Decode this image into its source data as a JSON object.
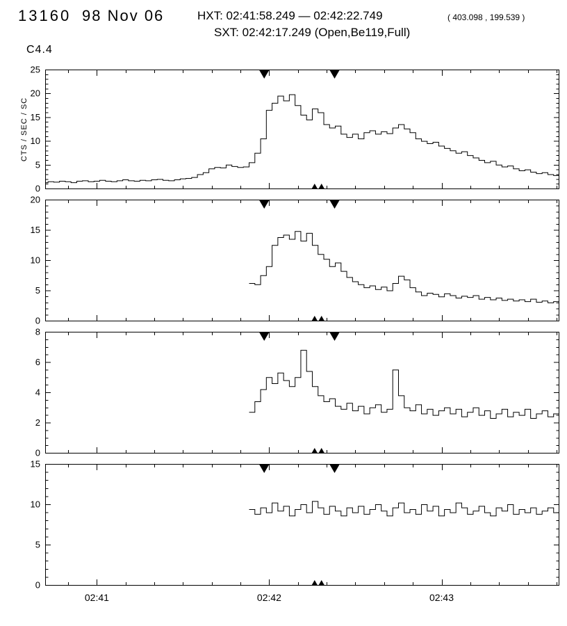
{
  "header": {
    "event_number": "13160",
    "date": "98 Nov 06",
    "hxt_text": "HXT: 02:41:58.249 — 02:42:22.749",
    "hxt_coords": "( 403.098 , 199.539 )",
    "sxt_text": "SXT: 02:42:17.249 (Open,Be119,Full)",
    "flare_class": "C4.4"
  },
  "axis": {
    "x_range": [
      42,
      221
    ],
    "x_minor": 10,
    "x_ticks": [
      {
        "t": 60,
        "label": "02:41"
      },
      {
        "t": 120,
        "label": "02:42"
      },
      {
        "t": 180,
        "label": "02:43"
      }
    ]
  },
  "markers": {
    "hxt_interval": [
      118.25,
      142.75
    ],
    "sxt_time": [
      135.8,
      138.2
    ]
  },
  "chart_data": [
    {
      "type": "line",
      "name": "hxt-channel-1-lightcurve",
      "ylabel": "CTS / SEC / SC",
      "ylim": [
        0,
        25
      ],
      "ytick": 5,
      "yminor": 5,
      "t0": 42,
      "dt": 2,
      "values": [
        1.3,
        1.5,
        1.4,
        1.6,
        1.5,
        1.3,
        1.6,
        1.7,
        1.5,
        1.6,
        1.8,
        1.6,
        1.5,
        1.7,
        1.9,
        1.7,
        1.6,
        1.8,
        1.7,
        1.9,
        2.0,
        1.8,
        1.7,
        1.9,
        2.1,
        2.2,
        2.4,
        3.0,
        3.4,
        4.2,
        4.5,
        4.4,
        5.0,
        4.7,
        4.5,
        4.6,
        5.5,
        7.5,
        10.5,
        16.5,
        18.0,
        19.5,
        18.5,
        19.8,
        17.5,
        15.5,
        14.5,
        16.8,
        16.0,
        13.5,
        12.8,
        13.2,
        11.5,
        10.8,
        11.5,
        10.5,
        11.8,
        12.2,
        11.5,
        12.0,
        11.6,
        12.8,
        13.5,
        12.6,
        11.8,
        10.5,
        10.0,
        9.5,
        9.8,
        9.0,
        8.5,
        8.0,
        7.5,
        7.8,
        7.0,
        6.5,
        6.0,
        5.5,
        5.8,
        5.0,
        4.6,
        4.8,
        4.2,
        3.8,
        4.0,
        3.5,
        3.2,
        3.4,
        3.0,
        2.8
      ]
    },
    {
      "type": "line",
      "name": "hxt-channel-2-lightcurve",
      "ylabel": "",
      "ylim": [
        0,
        20
      ],
      "ytick": 5,
      "yminor": 5,
      "t0": 114,
      "dt": 2,
      "values": [
        6.2,
        6.0,
        7.5,
        9.0,
        12.5,
        13.8,
        14.2,
        13.5,
        14.8,
        13.2,
        14.5,
        12.5,
        11.0,
        10.2,
        9.0,
        9.6,
        8.2,
        7.2,
        6.5,
        6.0,
        5.5,
        5.8,
        5.2,
        5.6,
        5.0,
        6.2,
        7.4,
        6.8,
        5.5,
        4.8,
        4.2,
        4.6,
        4.4,
        4.0,
        4.5,
        4.2,
        3.8,
        4.1,
        3.9,
        4.2,
        3.6,
        3.9,
        3.5,
        3.8,
        3.4,
        3.6,
        3.3,
        3.5,
        3.2,
        3.6,
        3.1,
        3.3,
        3.0,
        3.2
      ]
    },
    {
      "type": "line",
      "name": "hxt-channel-3-lightcurve",
      "ylabel": "",
      "ylim": [
        0,
        8
      ],
      "ytick": 2,
      "yminor": 4,
      "t0": 114,
      "dt": 2,
      "values": [
        2.7,
        3.4,
        4.2,
        5.0,
        4.6,
        5.3,
        4.8,
        4.4,
        5.0,
        6.8,
        5.4,
        4.4,
        3.8,
        3.4,
        3.6,
        3.1,
        2.9,
        3.3,
        2.8,
        3.1,
        2.6,
        3.0,
        3.2,
        2.7,
        2.9,
        5.5,
        3.8,
        3.0,
        2.8,
        3.2,
        2.6,
        2.9,
        2.5,
        2.8,
        3.0,
        2.6,
        2.9,
        2.4,
        2.7,
        3.0,
        2.5,
        2.8,
        2.3,
        2.6,
        2.9,
        2.4,
        2.7,
        2.5,
        2.9,
        2.3,
        2.6,
        2.8,
        2.4,
        2.6
      ]
    },
    {
      "type": "line",
      "name": "hxt-channel-4-lightcurve",
      "ylabel": "",
      "ylim": [
        0,
        15
      ],
      "ytick": 5,
      "yminor": 5,
      "t0": 114,
      "dt": 2,
      "values": [
        9.4,
        8.8,
        9.6,
        9.0,
        10.2,
        9.2,
        9.8,
        8.6,
        9.4,
        10.0,
        9.0,
        10.4,
        9.6,
        8.8,
        9.8,
        9.2,
        8.6,
        9.6,
        9.0,
        9.8,
        8.8,
        9.4,
        10.0,
        9.2,
        8.6,
        9.6,
        10.2,
        9.0,
        9.4,
        8.8,
        10.0,
        9.2,
        9.8,
        8.6,
        9.4,
        9.0,
        10.2,
        9.6,
        8.8,
        9.2,
        9.8,
        9.0,
        8.6,
        9.6,
        9.2,
        10.0,
        8.8,
        9.4,
        9.0,
        9.6,
        8.8,
        9.2,
        9.6,
        9.0
      ]
    }
  ]
}
